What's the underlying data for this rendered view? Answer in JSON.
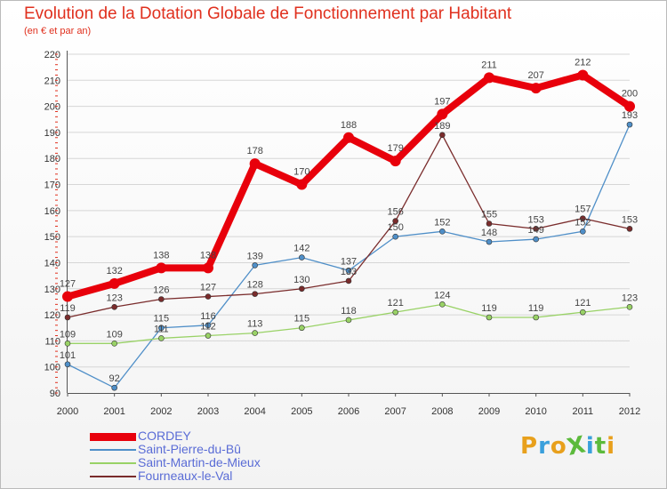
{
  "header": {
    "title": "Evolution de la Dotation Globale de Fonctionnement par Habitant",
    "subtitle": "(en € et par an)"
  },
  "logo": {
    "text": "ProXiti",
    "letters": [
      "P",
      "r",
      "o",
      "X",
      "i",
      "t",
      "i"
    ],
    "colors": [
      "#e8a01c",
      "#3aa0dc",
      "#e8a01c",
      "#5cba3c",
      "#3aa0dc",
      "#5cba3c",
      "#e8a01c"
    ]
  },
  "chart_data": {
    "type": "line",
    "title": "Evolution de la Dotation Globale de Fonctionnement par Habitant",
    "subtitle": "(en € et par an)",
    "xlabel": "",
    "ylabel": "",
    "x": [
      "2000",
      "2001",
      "2002",
      "2003",
      "2004",
      "2005",
      "2006",
      "2007",
      "2008",
      "2009",
      "2010",
      "2011",
      "2012"
    ],
    "ylim": [
      90,
      220
    ],
    "yticks": [
      90,
      100,
      110,
      120,
      130,
      140,
      150,
      160,
      170,
      180,
      190,
      200,
      210,
      220
    ],
    "grid": "horizontal",
    "legend_position": "bottom-left",
    "series": [
      {
        "name": "CORDEY",
        "color": "#e8000b",
        "emphasis": true,
        "values": [
          127,
          132,
          138,
          138,
          178,
          170,
          188,
          179,
          197,
          211,
          207,
          212,
          200
        ]
      },
      {
        "name": "Saint-Pierre-du-Bû",
        "color": "#4f8fc8",
        "emphasis": false,
        "values": [
          101,
          92,
          115,
          116,
          139,
          142,
          137,
          150,
          152,
          148,
          149,
          152,
          193
        ]
      },
      {
        "name": "Saint-Martin-de-Mieux",
        "color": "#99d266",
        "emphasis": false,
        "values": [
          109,
          109,
          111,
          112,
          113,
          115,
          118,
          121,
          124,
          119,
          119,
          121,
          123
        ]
      },
      {
        "name": "Fourneaux-le-Val",
        "color": "#7a2c2c",
        "emphasis": false,
        "values": [
          119,
          123,
          126,
          127,
          128,
          130,
          133,
          156,
          189,
          155,
          153,
          157,
          153
        ]
      }
    ]
  }
}
